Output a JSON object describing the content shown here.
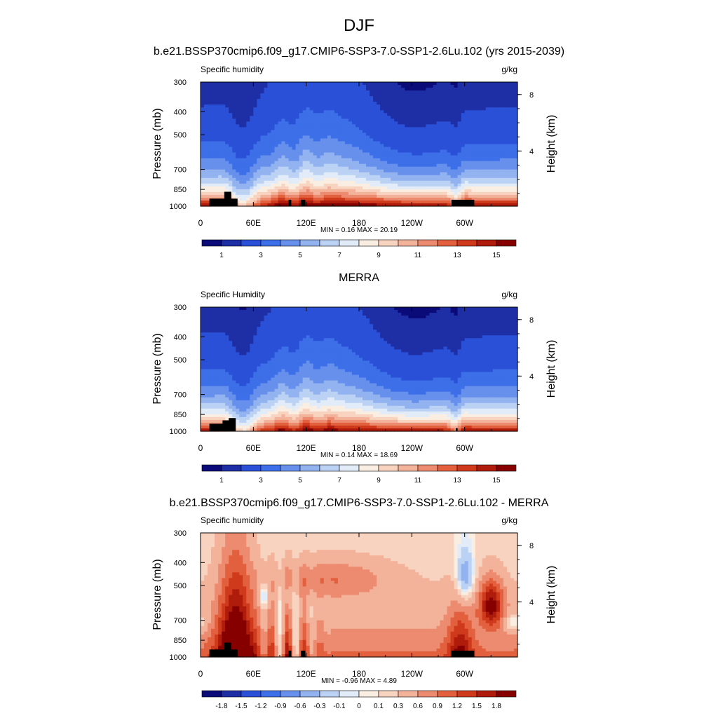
{
  "title": "DJF",
  "panel_titles": [
    "b.e21.BSSP370cmip6.f09_g17.CMIP6-SSP3-7.0-SSP1-2.6Lu.102 (yrs 2015-2039)",
    "MERRA",
    "b.e21.BSSP370cmip6.f09_g17.CMIP6-SSP3-7.0-SSP1-2.6Lu.102 - MERRA"
  ],
  "chart_data": [
    {
      "type": "heatmap",
      "title": "b.e21.BSSP370cmip6.f09_g17.CMIP6-SSP3-7.0-SSP1-2.6Lu.102 (yrs 2015-2039)",
      "left_label": "Specific humidity",
      "units": "g/kg",
      "ylabel": "Pressure (mb)",
      "right_ylabel": "Height (km)",
      "xlabel": "",
      "xticks": [
        "0",
        "60E",
        "120E",
        "180",
        "120W",
        "60W"
      ],
      "yticks": [
        "300",
        "400",
        "500",
        "700",
        "850",
        "1000"
      ],
      "right_ticks": [
        "8",
        "4"
      ],
      "xlim": [
        0,
        360
      ],
      "ylim": [
        1000,
        300
      ],
      "stats": "MIN =   0.16  MAX =   20.19",
      "colorbar_labels": [
        "1",
        "3",
        "5",
        "7",
        "9",
        "11",
        "13",
        "15"
      ],
      "colorbar_levels": [
        0.5,
        1,
        2,
        3,
        4,
        5,
        6,
        7,
        8,
        9,
        10,
        11,
        12,
        13,
        14,
        15
      ]
    },
    {
      "type": "heatmap",
      "title": "MERRA",
      "left_label": "Specific Humidity",
      "units": "g/kg",
      "ylabel": "Pressure (mb)",
      "right_ylabel": "Height (km)",
      "xlabel": "",
      "xticks": [
        "0",
        "60E",
        "120E",
        "180",
        "120W",
        "60W"
      ],
      "yticks": [
        "300",
        "400",
        "500",
        "700",
        "850",
        "1000"
      ],
      "right_ticks": [
        "8",
        "4"
      ],
      "xlim": [
        0,
        360
      ],
      "ylim": [
        1000,
        300
      ],
      "stats": "MIN =   0.14  MAX =   18.69",
      "colorbar_labels": [
        "1",
        "3",
        "5",
        "7",
        "9",
        "11",
        "13",
        "15"
      ],
      "colorbar_levels": [
        0.5,
        1,
        2,
        3,
        4,
        5,
        6,
        7,
        8,
        9,
        10,
        11,
        12,
        13,
        14,
        15
      ]
    },
    {
      "type": "heatmap",
      "title": "b.e21.BSSP370cmip6.f09_g17.CMIP6-SSP3-7.0-SSP1-2.6Lu.102 - MERRA",
      "left_label": "Specific humidity",
      "units": "g/kg",
      "ylabel": "Pressure (mb)",
      "right_ylabel": "Height (km)",
      "xlabel": "",
      "xticks": [
        "0",
        "60E",
        "120E",
        "180",
        "120W",
        "60W"
      ],
      "yticks": [
        "300",
        "400",
        "500",
        "700",
        "850",
        "1000"
      ],
      "right_ticks": [
        "8",
        "4"
      ],
      "xlim": [
        0,
        360
      ],
      "ylim": [
        1000,
        300
      ],
      "stats": "MIN =  -0.96  MAX =    4.89",
      "colorbar_labels": [
        "-1.8",
        "-1.5",
        "-1.2",
        "-0.9",
        "-0.6",
        "-0.3",
        "-0.1",
        "0",
        "0.1",
        "0.3",
        "0.6",
        "0.9",
        "1.2",
        "1.5",
        "1.8"
      ],
      "colorbar_levels": [
        -1.8,
        -1.5,
        -1.2,
        -0.9,
        -0.6,
        -0.3,
        -0.1,
        0,
        0.1,
        0.3,
        0.6,
        0.9,
        1.2,
        1.5,
        1.8
      ]
    }
  ],
  "colors": {
    "palette": [
      "#0a0a78",
      "#1e2fa6",
      "#2a50d8",
      "#3d6fe8",
      "#6690ec",
      "#92b2f0",
      "#bcd2f4",
      "#e2ecf8",
      "#faeee2",
      "#f8d3c0",
      "#f3b29a",
      "#ec8b70",
      "#e3603f",
      "#d03a1c",
      "#b01c0b",
      "#860000"
    ],
    "land": "#000000"
  }
}
